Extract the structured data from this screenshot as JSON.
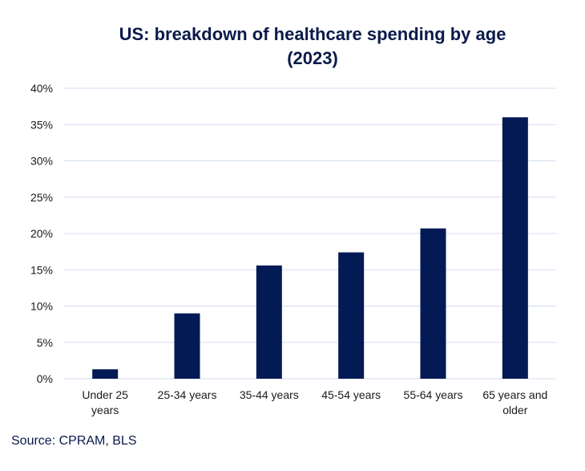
{
  "chart_data": {
    "type": "bar",
    "title_lines": [
      "US: breakdown of healthcare spending by age",
      "(2023)"
    ],
    "categories": [
      [
        "Under 25",
        "years"
      ],
      [
        "25-34 years"
      ],
      [
        "35-44 years"
      ],
      [
        "45-54 years"
      ],
      [
        "55-64 years"
      ],
      [
        "65 years and",
        "older"
      ]
    ],
    "values": [
      1.3,
      9.0,
      15.6,
      17.4,
      20.7,
      36.0
    ],
    "ylim": [
      0,
      40
    ],
    "yticks": [
      0,
      5,
      10,
      15,
      20,
      25,
      30,
      35,
      40
    ],
    "ytick_labels": [
      "0%",
      "5%",
      "10%",
      "15%",
      "20%",
      "25%",
      "30%",
      "35%",
      "40%"
    ],
    "xlabel": "",
    "ylabel": "",
    "grid": true,
    "bar_color": "#041a55",
    "grid_color": "#d3def0"
  },
  "source": "Source: CPRAM, BLS"
}
